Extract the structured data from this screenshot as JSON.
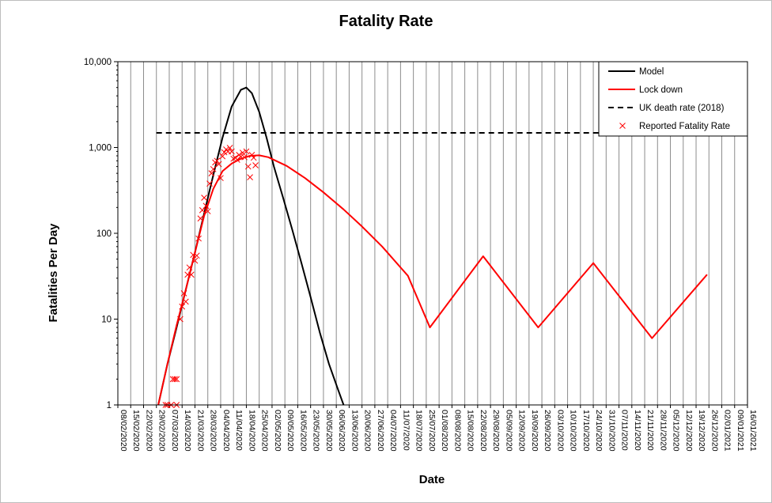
{
  "chart_data": {
    "type": "line",
    "title": "Fatality Rate",
    "xlabel": "Date",
    "ylabel": "Fatalities Per Day",
    "y_scale": "log",
    "ylim": [
      1,
      10000
    ],
    "y_ticks": [
      "1",
      "10",
      "100",
      "1,000",
      "10,000"
    ],
    "xlim": [
      "08/02/2020",
      "16/01/2021"
    ],
    "x_ticks": [
      "08/02/2020",
      "15/02/2020",
      "22/02/2020",
      "29/02/2020",
      "07/03/2020",
      "14/03/2020",
      "21/03/2020",
      "28/03/2020",
      "04/04/2020",
      "11/04/2020",
      "18/04/2020",
      "25/04/2020",
      "02/05/2020",
      "09/05/2020",
      "16/05/2020",
      "23/05/2020",
      "30/05/2020",
      "06/06/2020",
      "13/06/2020",
      "20/06/2020",
      "27/06/2020",
      "04/07/2020",
      "11/07/2020",
      "18/07/2020",
      "25/07/2020",
      "01/08/2020",
      "08/08/2020",
      "15/08/2020",
      "22/08/2020",
      "29/08/2020",
      "05/09/2020",
      "12/09/2020",
      "19/09/2020",
      "26/09/2020",
      "03/10/2020",
      "10/10/2020",
      "17/10/2020",
      "24/10/2020",
      "31/10/2020",
      "07/11/2020",
      "14/11/2020",
      "21/11/2020",
      "28/11/2020",
      "05/12/2020",
      "12/12/2020",
      "19/12/2020",
      "26/12/2020",
      "02/01/2021",
      "09/01/2021",
      "16/01/2021"
    ],
    "grid": true,
    "legend_position": "top-right",
    "series": [
      {
        "name": "Model",
        "color": "#000000",
        "style": "solid",
        "points": [
          [
            "01/03/2020",
            1
          ],
          [
            "06/03/2020",
            3
          ],
          [
            "11/03/2020",
            8
          ],
          [
            "16/03/2020",
            22
          ],
          [
            "21/03/2020",
            60
          ],
          [
            "26/03/2020",
            170
          ],
          [
            "31/03/2020",
            480
          ],
          [
            "05/04/2020",
            1300
          ],
          [
            "10/04/2020",
            3000
          ],
          [
            "15/04/2020",
            4700
          ],
          [
            "18/04/2020",
            5000
          ],
          [
            "21/04/2020",
            4300
          ],
          [
            "25/04/2020",
            2600
          ],
          [
            "29/04/2020",
            1300
          ],
          [
            "03/05/2020",
            600
          ],
          [
            "08/05/2020",
            260
          ],
          [
            "13/05/2020",
            110
          ],
          [
            "18/05/2020",
            45
          ],
          [
            "23/05/2020",
            18
          ],
          [
            "28/05/2020",
            7
          ],
          [
            "02/06/2020",
            3
          ],
          [
            "07/06/2020",
            1.5
          ],
          [
            "10/06/2020",
            1
          ]
        ]
      },
      {
        "name": "Lock down",
        "color": "#ff0000",
        "style": "solid",
        "points": [
          [
            "01/03/2020",
            1
          ],
          [
            "06/03/2020",
            3
          ],
          [
            "11/03/2020",
            8.5
          ],
          [
            "16/03/2020",
            22
          ],
          [
            "21/03/2020",
            60
          ],
          [
            "26/03/2020",
            160
          ],
          [
            "31/03/2020",
            330
          ],
          [
            "05/04/2020",
            530
          ],
          [
            "10/04/2020",
            650
          ],
          [
            "15/04/2020",
            740
          ],
          [
            "20/04/2020",
            800
          ],
          [
            "25/04/2020",
            810
          ],
          [
            "30/04/2020",
            770
          ],
          [
            "10/05/2020",
            610
          ],
          [
            "20/05/2020",
            440
          ],
          [
            "30/05/2020",
            300
          ],
          [
            "10/06/2020",
            190
          ],
          [
            "20/06/2020",
            120
          ],
          [
            "01/07/2020",
            70
          ],
          [
            "15/07/2020",
            32
          ],
          [
            "27/07/2020",
            8
          ],
          [
            "25/08/2020",
            54
          ],
          [
            "24/09/2020",
            8
          ],
          [
            "24/10/2020",
            45
          ],
          [
            "25/11/2020",
            6
          ],
          [
            "25/12/2020",
            33
          ]
        ]
      },
      {
        "name": "UK death rate (2018)",
        "color": "#000000",
        "style": "dashed",
        "points": [
          [
            "29/02/2020",
            1480
          ],
          [
            "27/10/2020",
            1480
          ]
        ]
      },
      {
        "name": "Reported Fatality Rate",
        "color": "#ff0000",
        "style": "markers",
        "marker": "x",
        "points": [
          [
            "05/03/2020",
            1
          ],
          [
            "06/03/2020",
            1
          ],
          [
            "08/03/2020",
            1
          ],
          [
            "11/03/2020",
            1
          ],
          [
            "09/03/2020",
            2
          ],
          [
            "10/03/2020",
            2
          ],
          [
            "11/03/2020",
            2
          ],
          [
            "13/03/2020",
            10
          ],
          [
            "14/03/2020",
            14
          ],
          [
            "15/03/2020",
            20
          ],
          [
            "16/03/2020",
            16
          ],
          [
            "17/03/2020",
            33
          ],
          [
            "18/03/2020",
            40
          ],
          [
            "19/03/2020",
            33
          ],
          [
            "20/03/2020",
            56
          ],
          [
            "21/03/2020",
            48
          ],
          [
            "22/03/2020",
            55
          ],
          [
            "23/03/2020",
            87
          ],
          [
            "24/03/2020",
            149
          ],
          [
            "25/03/2020",
            186
          ],
          [
            "26/03/2020",
            260
          ],
          [
            "27/03/2020",
            209
          ],
          [
            "28/03/2020",
            181
          ],
          [
            "29/03/2020",
            380
          ],
          [
            "30/03/2020",
            500
          ],
          [
            "31/03/2020",
            560
          ],
          [
            "01/04/2020",
            670
          ],
          [
            "02/04/2020",
            700
          ],
          [
            "03/04/2020",
            640
          ],
          [
            "04/04/2020",
            440
          ],
          [
            "05/04/2020",
            790
          ],
          [
            "06/04/2020",
            880
          ],
          [
            "07/04/2020",
            950
          ],
          [
            "08/04/2020",
            900
          ],
          [
            "09/04/2020",
            990
          ],
          [
            "10/04/2020",
            900
          ],
          [
            "11/04/2020",
            740
          ],
          [
            "12/04/2020",
            760
          ],
          [
            "13/04/2020",
            720
          ],
          [
            "14/04/2020",
            820
          ],
          [
            "15/04/2020",
            780
          ],
          [
            "16/04/2020",
            870
          ],
          [
            "17/04/2020",
            770
          ],
          [
            "18/04/2020",
            900
          ],
          [
            "19/04/2020",
            600
          ],
          [
            "20/04/2020",
            450
          ],
          [
            "21/04/2020",
            820
          ],
          [
            "22/04/2020",
            760
          ],
          [
            "23/04/2020",
            620
          ]
        ]
      }
    ]
  }
}
